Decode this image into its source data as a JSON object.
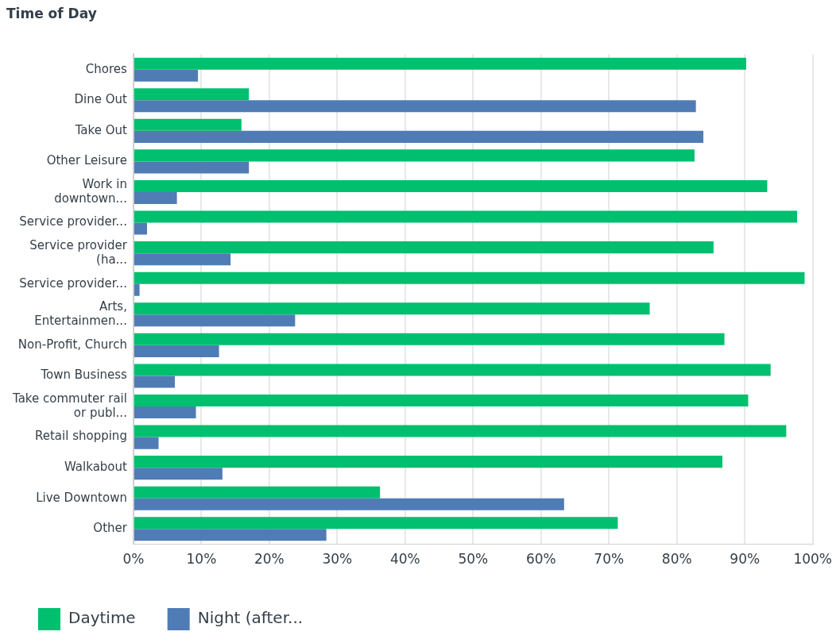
{
  "chart_data": {
    "type": "bar",
    "orientation": "horizontal",
    "title": "Time of Day",
    "categories": [
      "Chores",
      "Dine Out",
      "Take Out",
      "Other Leisure",
      "Work in downtown...",
      "Service provider...",
      "Service provider (ha...",
      "Service provider...",
      "Arts, Entertainmen...",
      "Non-Profit, Church",
      "Town Business",
      "Take commuter rail or publ...",
      "Retail shopping",
      "Walkabout",
      "Live Downtown",
      "Other"
    ],
    "series": [
      {
        "name": "Daytime",
        "color": "#00bf6f",
        "values": [
          90.2,
          17.0,
          15.9,
          82.6,
          93.3,
          97.7,
          85.4,
          98.8,
          76.0,
          87.0,
          93.8,
          90.5,
          96.1,
          86.7,
          36.3,
          71.3
        ]
      },
      {
        "name": "Night (after...",
        "color": "#507cb6",
        "values": [
          9.5,
          82.8,
          83.9,
          17.0,
          6.4,
          2.0,
          14.3,
          0.9,
          23.8,
          12.6,
          6.1,
          9.2,
          3.7,
          13.1,
          63.4,
          28.4
        ]
      }
    ],
    "xlim": [
      0,
      100
    ],
    "xticks": [
      {
        "value": 0,
        "label": "0%"
      },
      {
        "value": 10,
        "label": "10%"
      },
      {
        "value": 20,
        "label": "20%"
      },
      {
        "value": 30,
        "label": "30%"
      },
      {
        "value": 40,
        "label": "40%"
      },
      {
        "value": 50,
        "label": "50%"
      },
      {
        "value": 60,
        "label": "60%"
      },
      {
        "value": 70,
        "label": "70%"
      },
      {
        "value": 80,
        "label": "80%"
      },
      {
        "value": 90,
        "label": "90%"
      },
      {
        "value": 100,
        "label": "100%"
      }
    ],
    "grid": "x",
    "legend": "bottom left"
  }
}
